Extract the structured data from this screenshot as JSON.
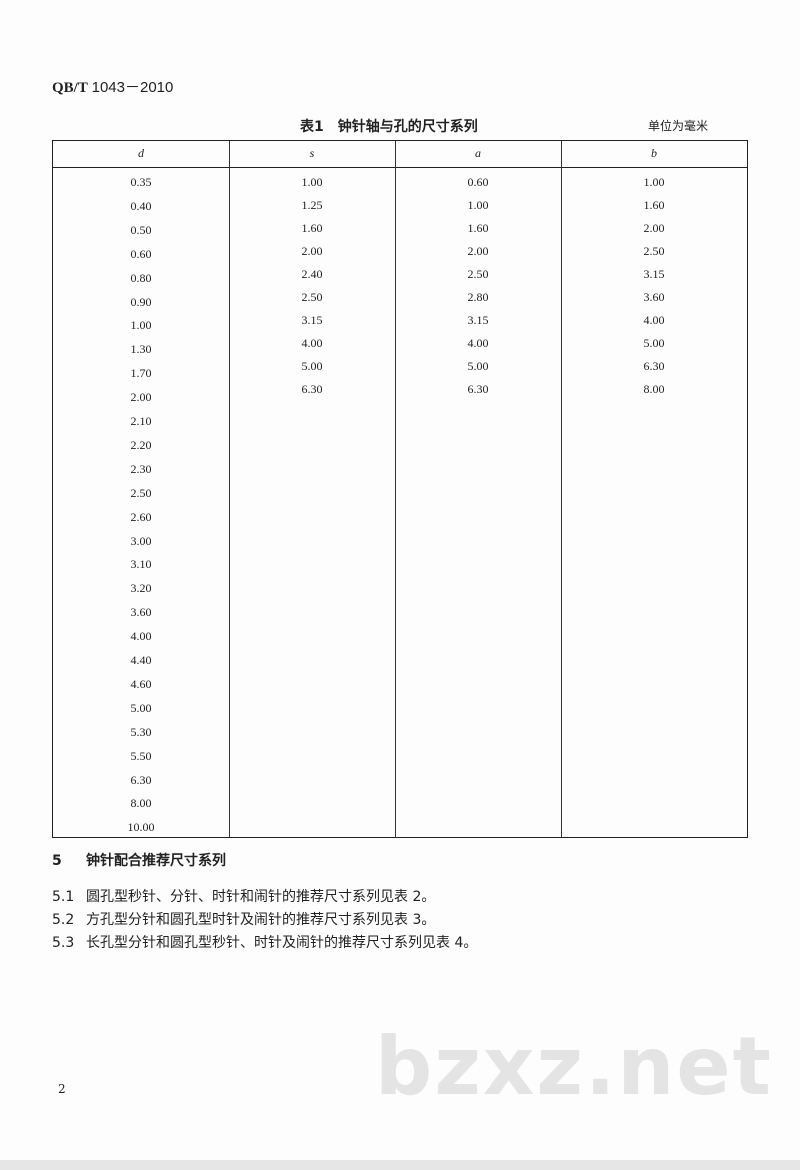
{
  "header": {
    "standard_prefix": "QB/T",
    "standard_number": "1043－2010"
  },
  "table1": {
    "title": "表1　钟针轴与孔的尺寸系列",
    "unit": "单位为毫米",
    "columns": [
      "d",
      "s",
      "a",
      "b"
    ],
    "d": [
      "0.35",
      "0.40",
      "0.50",
      "0.60",
      "0.80",
      "0.90",
      "1.00",
      "1.30",
      "1.70",
      "2.00",
      "2.10",
      "2.20",
      "2.30",
      "2.50",
      "2.60",
      "3.00",
      "3.10",
      "3.20",
      "3.60",
      "4.00",
      "4.40",
      "4.60",
      "5.00",
      "5.30",
      "5.50",
      "6.30",
      "8.00",
      "10.00"
    ],
    "s": [
      "1.00",
      "1.25",
      "1.60",
      "2.00",
      "2.40",
      "2.50",
      "3.15",
      "4.00",
      "5.00",
      "6.30"
    ],
    "a": [
      "0.60",
      "1.00",
      "1.60",
      "2.00",
      "2.50",
      "2.80",
      "3.15",
      "4.00",
      "5.00",
      "6.30"
    ],
    "b": [
      "1.00",
      "1.60",
      "2.00",
      "2.50",
      "3.15",
      "3.60",
      "4.00",
      "5.00",
      "6.30",
      "8.00"
    ]
  },
  "section5": {
    "heading_num": "5",
    "heading": "钟针配合推荐尺寸系列",
    "items": [
      {
        "num": "5.1",
        "text": "圆孔型秒针、分针、时针和闹针的推荐尺寸系列见表 2。"
      },
      {
        "num": "5.2",
        "text": "方孔型分针和圆孔型时针及闹针的推荐尺寸系列见表 3。"
      },
      {
        "num": "5.3",
        "text": "长孔型分针和圆孔型秒针、时针及闹针的推荐尺寸系列见表 4。"
      }
    ]
  },
  "page_number": "2",
  "watermark": "bzxz.net"
}
